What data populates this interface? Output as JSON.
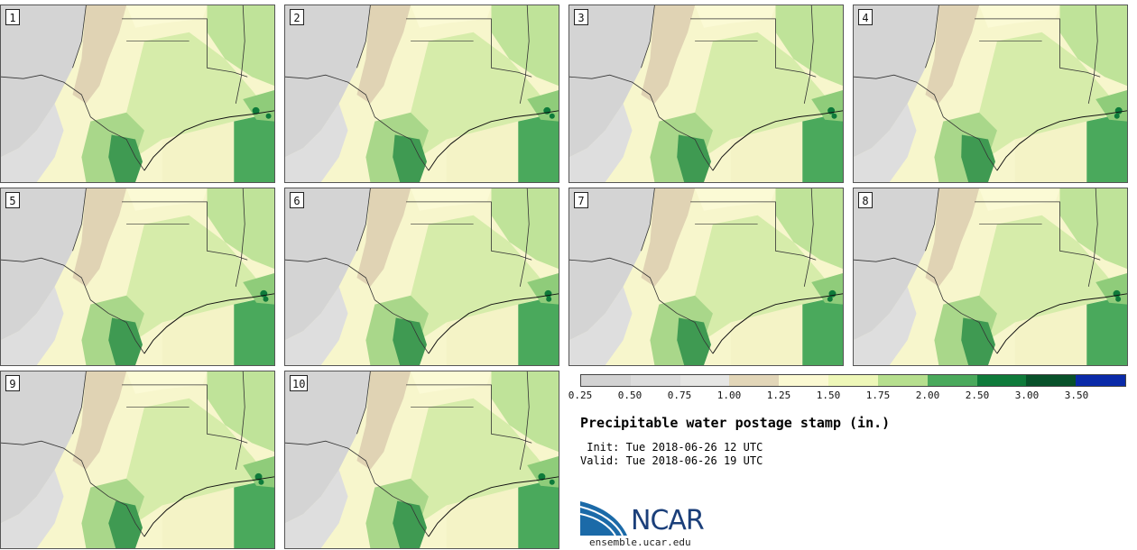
{
  "panels": [
    {
      "label": "1"
    },
    {
      "label": "2"
    },
    {
      "label": "3"
    },
    {
      "label": "4"
    },
    {
      "label": "5"
    },
    {
      "label": "6"
    },
    {
      "label": "7"
    },
    {
      "label": "8"
    },
    {
      "label": "9"
    },
    {
      "label": "10"
    }
  ],
  "colorbar": {
    "colors": [
      "#d2d2d2",
      "#dcdcdc",
      "#e6e6e4",
      "#e2d6b8",
      "#fbf9d2",
      "#eef7b8",
      "#b6df8e",
      "#4aa95c",
      "#0e7a3a",
      "#08512a",
      "#0a2aa8"
    ],
    "labels": [
      "0.25",
      "0.50",
      "0.75",
      "1.00",
      "1.25",
      "1.50",
      "1.75",
      "2.00",
      "2.50",
      "3.00",
      "3.50"
    ]
  },
  "title": "Precipitable water postage stamp (in.)",
  "init": "Init: Tue 2018-06-26 12 UTC",
  "valid": "Valid: Tue 2018-06-26 19 UTC",
  "logo": {
    "text": "NCAR",
    "url": "ensemble.ucar.edu",
    "colors": {
      "blue": "#1b6aa8",
      "dark": "#1b3f7a"
    }
  }
}
